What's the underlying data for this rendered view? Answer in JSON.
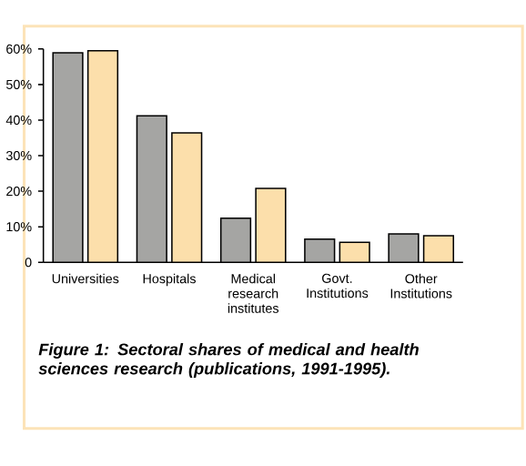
{
  "chart_data": {
    "type": "bar",
    "categories": [
      "Universities",
      "Hospitals",
      "Medical research institutes",
      "Govt. Institutions",
      "Other Institutions"
    ],
    "series": [
      {
        "color": "#a5a5a3",
        "values": [
          58.9,
          41.2,
          12.4,
          6.5,
          8.0
        ]
      },
      {
        "color": "#fcdfab",
        "values": [
          59.5,
          36.4,
          20.8,
          5.6,
          7.5
        ]
      }
    ],
    "ylim": [
      0,
      60
    ],
    "yticks": [
      {
        "value": 0,
        "label": "0"
      },
      {
        "value": 10,
        "label": "10%"
      },
      {
        "value": 20,
        "label": "20%"
      },
      {
        "value": 30,
        "label": "30%"
      },
      {
        "value": 40,
        "label": "40%"
      },
      {
        "value": 50,
        "label": "50%"
      },
      {
        "value": 60,
        "label": "60%"
      }
    ],
    "annotations": [
      "Figure 1: Sectoral shares of medical and health sciences research (publications, 1991-1995)."
    ]
  }
}
